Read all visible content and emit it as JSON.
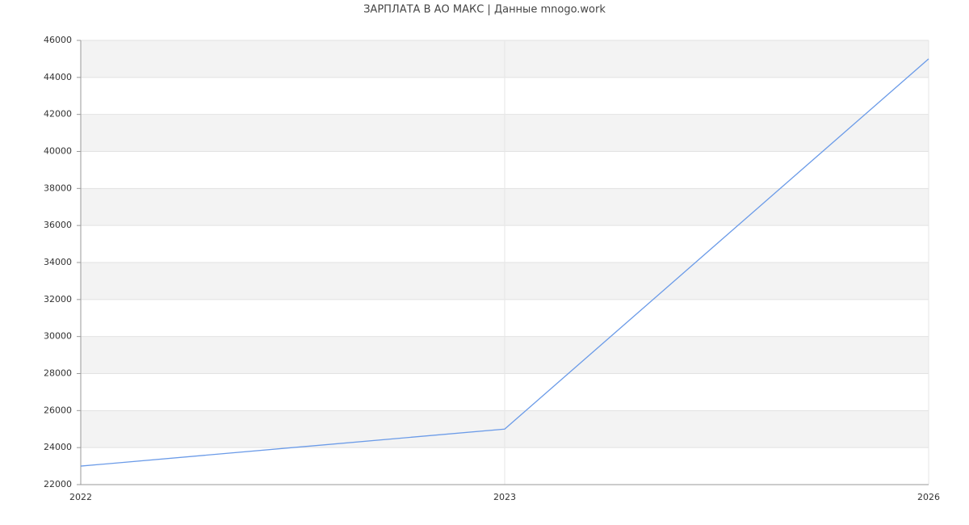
{
  "chart_data": {
    "type": "line",
    "title": "ЗАРПЛАТА В АО МАКС | Данные mnogo.work",
    "categories": [
      "2022",
      "2023",
      "2026"
    ],
    "series": [
      {
        "color": "#6b9be8",
        "values": [
          23000,
          25000,
          45000
        ]
      }
    ],
    "ylim": [
      22000,
      46000
    ],
    "yticks": [
      22000,
      24000,
      26000,
      28000,
      30000,
      32000,
      34000,
      36000,
      38000,
      40000,
      42000,
      44000,
      46000
    ],
    "grid": true
  }
}
